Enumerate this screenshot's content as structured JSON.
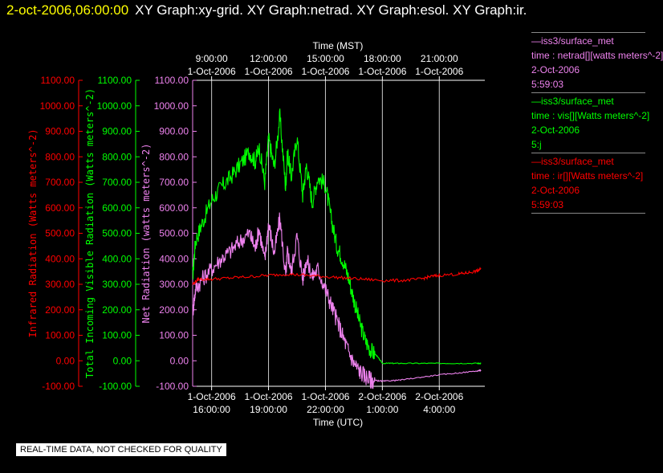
{
  "title": {
    "datetime": "2-oct-2006,06:00:00",
    "graphs": "XY Graph:xy-grid.  XY Graph:netrad.  XY Graph:esol.  XY Graph:ir."
  },
  "quality_note": "REAL-TIME DATA, NOT CHECKED FOR QUALITY",
  "legend": [
    {
      "color": "#ee82ee",
      "lines": [
        "—iss3/surface_met",
        "time : netrad[][watts meters^-2]",
        "2-Oct-2006",
        "5:59:03"
      ]
    },
    {
      "color": "#00ff00",
      "lines": [
        "—iss3/surface_met",
        "time : vis[][Watts meters^-2]",
        "2-Oct-2006",
        "5:j"
      ]
    },
    {
      "color": "#ff0000",
      "lines": [
        "—iss3/surface_met",
        "time : ir[][Watts meters^-2]",
        "2-Oct-2006",
        "5:59:03"
      ]
    }
  ],
  "chart_data": {
    "type": "line",
    "x_top": {
      "label": "Time (MST)",
      "ticks": [
        {
          "hour": 9,
          "date": "1-Oct-2006",
          "time": "9:00:00"
        },
        {
          "hour": 12,
          "date": "1-Oct-2006",
          "time": "12:00:00"
        },
        {
          "hour": 15,
          "date": "1-Oct-2006",
          "time": "15:00:00"
        },
        {
          "hour": 18,
          "date": "1-Oct-2006",
          "time": "18:00:00"
        },
        {
          "hour": 21,
          "date": "1-Oct-2006",
          "time": "21:00:00"
        }
      ]
    },
    "x_bottom": {
      "label": "Time (UTC)",
      "ticks": [
        {
          "hour": 9,
          "date": "1-Oct-2006",
          "time": "16:00:00"
        },
        {
          "hour": 12,
          "date": "1-Oct-2006",
          "time": "19:00:00"
        },
        {
          "hour": 15,
          "date": "1-Oct-2006",
          "time": "22:00:00"
        },
        {
          "hour": 18,
          "date": "2-Oct-2006",
          "time": "1:00:00"
        },
        {
          "hour": 21,
          "date": "2-Oct-2006",
          "time": "4:00:00"
        }
      ]
    },
    "xlim_mst_hours": [
      8.0,
      23.4
    ],
    "y_axes": [
      {
        "label": "Infrared Radiation (Watts meters^-2)",
        "color": "#ff0000",
        "ylim": [
          -100,
          1100
        ],
        "ticks": [
          "-100.00",
          "0.00",
          "100.00",
          "200.00",
          "300.00",
          "400.00",
          "500.00",
          "600.00",
          "700.00",
          "800.00",
          "900.00",
          "1000.00",
          "1100.00"
        ]
      },
      {
        "label": "Total Incoming Visible Radiation (Watts meters^-2)",
        "color": "#00ff00",
        "ylim": [
          -100,
          1100
        ],
        "ticks": [
          "-100.00",
          "0.00",
          "100.00",
          "200.00",
          "300.00",
          "400.00",
          "500.00",
          "600.00",
          "700.00",
          "800.00",
          "900.00",
          "1000.00",
          "1100.00"
        ]
      },
      {
        "label": "Net Radiation (watts meters^-2)",
        "color": "#ee82ee",
        "ylim": [
          -100,
          1100
        ],
        "ticks": [
          "-100.00",
          "0.00",
          "100.00",
          "200.00",
          "300.00",
          "400.00",
          "500.00",
          "600.00",
          "700.00",
          "800.00",
          "900.00",
          "1000.00",
          "1100.00"
        ]
      }
    ],
    "series": [
      {
        "name": "vis",
        "color": "#00ff00",
        "x": [
          8.0,
          8.15,
          8.5,
          9.0,
          9.5,
          10.0,
          10.5,
          11.0,
          11.3,
          11.5,
          11.8,
          12.0,
          12.3,
          12.6,
          12.9,
          13.0,
          13.2,
          13.5,
          13.8,
          14.0,
          14.3,
          14.6,
          15.0,
          15.3,
          15.6,
          15.9,
          16.2,
          16.5,
          16.8,
          17.1,
          17.4,
          17.7,
          18.0,
          18.5,
          19.0,
          20.0,
          21.0,
          22.0,
          23.0,
          23.2
        ],
        "y": [
          330,
          470,
          540,
          630,
          680,
          720,
          770,
          820,
          780,
          840,
          700,
          870,
          760,
          960,
          680,
          820,
          720,
          880,
          650,
          770,
          620,
          720,
          690,
          560,
          450,
          400,
          330,
          240,
          150,
          80,
          40,
          20,
          -10,
          -10,
          -10,
          -10,
          -10,
          -10,
          -10,
          -10
        ]
      },
      {
        "name": "netrad",
        "color": "#ee82ee",
        "x": [
          8.0,
          8.15,
          8.5,
          9.0,
          9.5,
          10.0,
          10.5,
          11.0,
          11.3,
          11.5,
          11.8,
          12.0,
          12.3,
          12.6,
          12.9,
          13.0,
          13.2,
          13.5,
          13.8,
          14.0,
          14.3,
          14.6,
          15.0,
          15.3,
          15.6,
          15.9,
          16.2,
          16.5,
          16.8,
          17.1,
          17.4,
          17.7,
          18.0,
          18.5,
          19.0,
          20.0,
          21.0,
          22.0,
          23.0,
          23.2
        ],
        "y": [
          190,
          280,
          320,
          360,
          400,
          430,
          470,
          500,
          440,
          520,
          390,
          540,
          420,
          560,
          330,
          430,
          350,
          490,
          320,
          400,
          330,
          360,
          280,
          220,
          160,
          100,
          40,
          -10,
          -40,
          -60,
          -75,
          -78,
          -80,
          -78,
          -75,
          -65,
          -55,
          -48,
          -40,
          -37
        ]
      },
      {
        "name": "ir",
        "color": "#ff0000",
        "x": [
          8.0,
          8.3,
          9.0,
          10.0,
          11.0,
          12.0,
          13.0,
          14.0,
          15.0,
          16.0,
          17.0,
          18.0,
          19.0,
          20.0,
          20.5,
          21.0,
          22.0,
          22.5,
          23.0,
          23.2
        ],
        "y": [
          300,
          320,
          320,
          325,
          330,
          335,
          340,
          335,
          330,
          325,
          320,
          315,
          315,
          320,
          330,
          335,
          340,
          345,
          352,
          360
        ]
      }
    ],
    "grid": "vertical"
  }
}
